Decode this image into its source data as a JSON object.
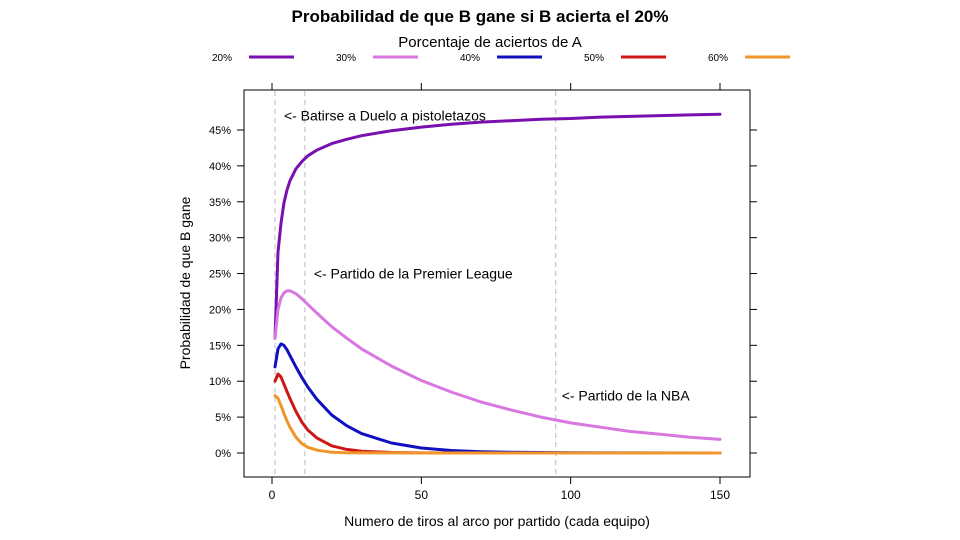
{
  "chart_data": {
    "type": "line",
    "title": "Probabilidad de que B gane si B acierta el 20%",
    "legend_title": "Porcentaje de aciertos de A",
    "legend_placement": "top",
    "xlabel": "Numero de tiros al arco por partido (cada equipo)",
    "ylabel": "Probabilidad de que B gane",
    "xlim": [
      -10,
      160
    ],
    "ylim": [
      -3.2,
      50.7
    ],
    "x_ticks": [
      0,
      50,
      100,
      150
    ],
    "y_ticks": [
      0,
      5,
      10,
      15,
      20,
      25,
      30,
      35,
      40,
      45
    ],
    "y_tick_labels": [
      "0%",
      "5%",
      "10%",
      "15%",
      "20%",
      "25%",
      "30%",
      "35%",
      "40%",
      "45%"
    ],
    "grid": false,
    "vlines": [
      1,
      11,
      95
    ],
    "annotations": [
      {
        "text": "<- Batirse a Duelo a pistoletazos",
        "x": 4,
        "y": 47
      },
      {
        "text": "<- Partido de la Premier League",
        "x": 14,
        "y": 25
      },
      {
        "text": "<- Partido de la NBA",
        "x": 97,
        "y": 8
      }
    ],
    "series": [
      {
        "name": "20%",
        "color": "#7a0fb0",
        "x": [
          1,
          2,
          3,
          4,
          5,
          6,
          8,
          10,
          12,
          15,
          20,
          25,
          30,
          40,
          50,
          60,
          70,
          80,
          90,
          100,
          110,
          120,
          130,
          140,
          150
        ],
        "y": [
          16,
          28,
          32,
          34.8,
          36.6,
          37.9,
          39.6,
          40.6,
          41.4,
          42.2,
          43.1,
          43.7,
          44.2,
          44.9,
          45.4,
          45.8,
          46.1,
          46.3,
          46.5,
          46.6,
          46.8,
          46.9,
          47.0,
          47.1,
          47.2
        ]
      },
      {
        "name": "30%",
        "color": "#d877e0",
        "x": [
          1,
          2,
          3,
          4,
          5,
          6,
          8,
          10,
          12,
          15,
          20,
          25,
          30,
          40,
          50,
          60,
          70,
          80,
          90,
          100,
          110,
          120,
          130,
          140,
          150
        ],
        "y": [
          16,
          20,
          21.6,
          22.3,
          22.6,
          22.6,
          22.2,
          21.5,
          20.7,
          19.5,
          17.6,
          16,
          14.5,
          12.1,
          10.1,
          8.5,
          7.1,
          6,
          5,
          4.2,
          3.6,
          3,
          2.6,
          2.2,
          1.9
        ]
      },
      {
        "name": "40%",
        "color": "#1010c0",
        "x": [
          1,
          2,
          3,
          4,
          5,
          6,
          8,
          10,
          12,
          15,
          20,
          25,
          30,
          40,
          50,
          60,
          70,
          80,
          100,
          120,
          150
        ],
        "y": [
          12,
          14.5,
          15.2,
          15,
          14.4,
          13.6,
          12,
          10.5,
          9.2,
          7.5,
          5.3,
          3.8,
          2.7,
          1.4,
          0.7,
          0.35,
          0.18,
          0.1,
          0.03,
          0.01,
          0
        ]
      },
      {
        "name": "50%",
        "color": "#d01515",
        "x": [
          1,
          2,
          3,
          4,
          5,
          6,
          8,
          10,
          12,
          15,
          20,
          25,
          30,
          40,
          50,
          80,
          150
        ],
        "y": [
          10,
          11,
          10.6,
          9.6,
          8.6,
          7.6,
          5.8,
          4.3,
          3.2,
          2.1,
          1.0,
          0.5,
          0.25,
          0.07,
          0.02,
          0,
          0
        ]
      },
      {
        "name": "60%",
        "color": "#f0962a",
        "x": [
          1,
          2,
          3,
          4,
          5,
          6,
          8,
          10,
          12,
          15,
          20,
          25,
          30,
          50,
          150
        ],
        "y": [
          8,
          7.6,
          6.6,
          5.5,
          4.5,
          3.6,
          2.2,
          1.3,
          0.8,
          0.4,
          0.1,
          0.03,
          0.01,
          0,
          0
        ]
      }
    ]
  }
}
